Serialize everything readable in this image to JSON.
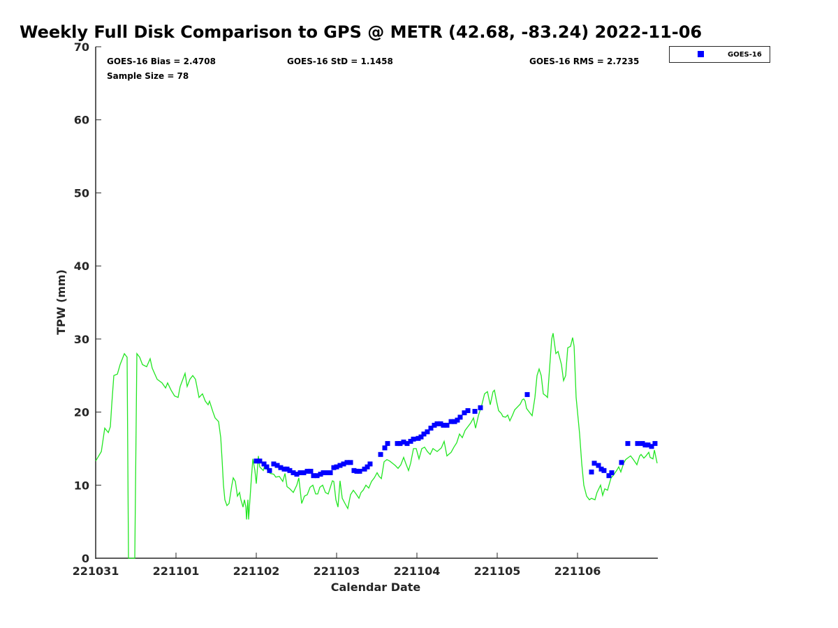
{
  "chart_data": {
    "type": "scatter",
    "title": "Weekly Full Disk Comparison to GPS @ METR (42.68, -83.24) 2022-11-06",
    "xlabel": "Calendar Date",
    "ylabel": "TPW (mm)",
    "x_units": "days since 221031",
    "xlim": [
      0,
      7
    ],
    "ylim": [
      0,
      70
    ],
    "xticks": [
      0,
      1,
      2,
      3,
      4,
      5,
      6
    ],
    "xtick_labels": [
      "221031",
      "221101",
      "221102",
      "221103",
      "221104",
      "221105",
      "221106"
    ],
    "yticks": [
      0,
      10,
      20,
      30,
      40,
      50,
      60,
      70
    ],
    "ytick_labels": [
      "0",
      "10",
      "20",
      "30",
      "40",
      "50",
      "60",
      "70"
    ],
    "grid": false,
    "legend_position": "top-right",
    "stats": {
      "bias": "GOES-16 Bias = 2.4708",
      "std": "GOES-16 StD = 1.1458",
      "rms": "GOES-16 RMS = 2.7235",
      "sample": "Sample Size = 78"
    },
    "colors": {
      "goes": "#0000ff",
      "gps": "#22e622"
    },
    "series": [
      {
        "name": "GOES-16",
        "type": "scatter",
        "legend": "GOES-16",
        "points": [
          [
            2.0,
            13.3
          ],
          [
            2.043,
            13.3
          ],
          [
            2.096,
            12.9
          ],
          [
            2.13,
            12.5
          ],
          [
            2.165,
            12.0
          ],
          [
            2.217,
            12.9
          ],
          [
            2.261,
            12.7
          ],
          [
            2.304,
            12.4
          ],
          [
            2.348,
            12.2
          ],
          [
            2.383,
            12.2
          ],
          [
            2.417,
            12.0
          ],
          [
            2.461,
            11.7
          ],
          [
            2.504,
            11.5
          ],
          [
            2.548,
            11.7
          ],
          [
            2.591,
            11.7
          ],
          [
            2.635,
            11.9
          ],
          [
            2.678,
            11.9
          ],
          [
            2.713,
            11.3
          ],
          [
            2.757,
            11.3
          ],
          [
            2.8,
            11.5
          ],
          [
            2.835,
            11.7
          ],
          [
            2.878,
            11.7
          ],
          [
            2.922,
            11.7
          ],
          [
            2.965,
            12.4
          ],
          [
            3.0,
            12.5
          ],
          [
            3.043,
            12.7
          ],
          [
            3.087,
            12.9
          ],
          [
            3.13,
            13.1
          ],
          [
            3.174,
            13.1
          ],
          [
            3.217,
            12.0
          ],
          [
            3.252,
            11.9
          ],
          [
            3.287,
            11.9
          ],
          [
            3.348,
            12.2
          ],
          [
            3.383,
            12.5
          ],
          [
            3.417,
            12.9
          ],
          [
            3.548,
            14.2
          ],
          [
            3.6,
            15.1
          ],
          [
            3.635,
            15.7
          ],
          [
            3.757,
            15.7
          ],
          [
            3.791,
            15.7
          ],
          [
            3.835,
            15.9
          ],
          [
            3.878,
            15.7
          ],
          [
            3.922,
            16.0
          ],
          [
            3.957,
            16.3
          ],
          [
            4.017,
            16.4
          ],
          [
            4.052,
            16.6
          ],
          [
            4.087,
            17.0
          ],
          [
            4.13,
            17.3
          ],
          [
            4.174,
            17.8
          ],
          [
            4.217,
            18.2
          ],
          [
            4.252,
            18.4
          ],
          [
            4.296,
            18.4
          ],
          [
            4.33,
            18.2
          ],
          [
            4.374,
            18.2
          ],
          [
            4.426,
            18.7
          ],
          [
            4.47,
            18.7
          ],
          [
            4.504,
            18.9
          ],
          [
            4.539,
            19.3
          ],
          [
            4.591,
            19.9
          ],
          [
            4.635,
            20.2
          ],
          [
            4.722,
            20.1
          ],
          [
            4.791,
            20.6
          ],
          [
            5.374,
            22.4
          ],
          [
            6.174,
            11.8
          ],
          [
            6.209,
            13.0
          ],
          [
            6.261,
            12.7
          ],
          [
            6.296,
            12.2
          ],
          [
            6.33,
            12.0
          ],
          [
            6.391,
            11.3
          ],
          [
            6.426,
            11.7
          ],
          [
            6.548,
            13.1
          ],
          [
            6.626,
            15.7
          ],
          [
            6.748,
            15.7
          ],
          [
            6.809,
            15.7
          ],
          [
            6.843,
            15.5
          ],
          [
            6.878,
            15.5
          ],
          [
            6.922,
            15.3
          ],
          [
            6.965,
            15.7
          ]
        ]
      },
      {
        "name": "GPS",
        "type": "line",
        "points": [
          [
            0,
            13.3
          ],
          [
            0.07,
            14.6
          ],
          [
            0.113,
            17.8
          ],
          [
            0.157,
            17.2
          ],
          [
            0.183,
            18
          ],
          [
            0.2,
            21
          ],
          [
            0.226,
            25
          ],
          [
            0.27,
            25.2
          ],
          [
            0.304,
            26.5
          ],
          [
            0.357,
            28
          ],
          [
            0.391,
            27.5
          ],
          [
            0.409,
            0
          ],
          [
            0.487,
            0
          ],
          [
            0.513,
            28
          ],
          [
            0.548,
            27.5
          ],
          [
            0.583,
            26.5
          ],
          [
            0.635,
            26.2
          ],
          [
            0.678,
            27.3
          ],
          [
            0.704,
            26
          ],
          [
            0.765,
            24.5
          ],
          [
            0.826,
            24
          ],
          [
            0.87,
            23.3
          ],
          [
            0.896,
            24
          ],
          [
            0.939,
            23
          ],
          [
            0.983,
            22.2
          ],
          [
            1.026,
            22
          ],
          [
            1.052,
            23.5
          ],
          [
            1.113,
            25.3
          ],
          [
            1.139,
            23.5
          ],
          [
            1.174,
            24.5
          ],
          [
            1.209,
            25
          ],
          [
            1.243,
            24.5
          ],
          [
            1.287,
            22
          ],
          [
            1.33,
            22.5
          ],
          [
            1.365,
            21.5
          ],
          [
            1.4,
            21
          ],
          [
            1.417,
            21.5
          ],
          [
            1.461,
            20
          ],
          [
            1.487,
            19.2
          ],
          [
            1.53,
            18.7
          ],
          [
            1.557,
            16.5
          ],
          [
            1.574,
            13.5
          ],
          [
            1.591,
            10
          ],
          [
            1.609,
            8
          ],
          [
            1.635,
            7.2
          ],
          [
            1.661,
            7.5
          ],
          [
            1.696,
            10
          ],
          [
            1.713,
            11
          ],
          [
            1.739,
            10.5
          ],
          [
            1.765,
            8.5
          ],
          [
            1.791,
            9
          ],
          [
            1.809,
            8
          ],
          [
            1.835,
            7
          ],
          [
            1.852,
            8
          ],
          [
            1.87,
            7
          ],
          [
            1.878,
            5.3
          ],
          [
            1.896,
            8
          ],
          [
            1.904,
            5.3
          ],
          [
            1.939,
            11
          ],
          [
            1.957,
            13.6
          ],
          [
            1.983,
            12
          ],
          [
            2.0,
            10.2
          ],
          [
            2.026,
            14
          ],
          [
            2.043,
            12.5
          ],
          [
            2.087,
            12
          ],
          [
            2.113,
            13
          ],
          [
            2.139,
            12
          ],
          [
            2.174,
            11.6
          ],
          [
            2.217,
            11.5
          ],
          [
            2.243,
            11.1
          ],
          [
            2.287,
            11.2
          ],
          [
            2.33,
            10.5
          ],
          [
            2.357,
            11.6
          ],
          [
            2.383,
            9.8
          ],
          [
            2.417,
            9.5
          ],
          [
            2.461,
            9
          ],
          [
            2.504,
            10
          ],
          [
            2.53,
            11
          ],
          [
            2.565,
            7.5
          ],
          [
            2.6,
            8.5
          ],
          [
            2.635,
            8.7
          ],
          [
            2.67,
            9.7
          ],
          [
            2.704,
            10
          ],
          [
            2.739,
            8.8
          ],
          [
            2.765,
            8.8
          ],
          [
            2.791,
            9.7
          ],
          [
            2.826,
            10
          ],
          [
            2.861,
            9
          ],
          [
            2.896,
            8.8
          ],
          [
            2.93,
            10
          ],
          [
            2.948,
            10.6
          ],
          [
            2.965,
            10.5
          ],
          [
            2.991,
            8
          ],
          [
            3.017,
            7
          ],
          [
            3.043,
            10.6
          ],
          [
            3.07,
            8.2
          ],
          [
            3.104,
            7.5
          ],
          [
            3.139,
            6.8
          ],
          [
            3.174,
            8.7
          ],
          [
            3.209,
            9.3
          ],
          [
            3.243,
            8.8
          ],
          [
            3.278,
            8.2
          ],
          [
            3.304,
            9
          ],
          [
            3.33,
            9.3
          ],
          [
            3.365,
            10
          ],
          [
            3.4,
            9.6
          ],
          [
            3.435,
            10.5
          ],
          [
            3.47,
            11
          ],
          [
            3.504,
            11.7
          ],
          [
            3.53,
            11.2
          ],
          [
            3.557,
            10.9
          ],
          [
            3.591,
            13.2
          ],
          [
            3.626,
            13.5
          ],
          [
            3.661,
            13.3
          ],
          [
            3.696,
            13
          ],
          [
            3.73,
            12.7
          ],
          [
            3.765,
            12.3
          ],
          [
            3.8,
            12.8
          ],
          [
            3.835,
            13.8
          ],
          [
            3.861,
            13
          ],
          [
            3.896,
            12
          ],
          [
            3.922,
            13
          ],
          [
            3.957,
            15
          ],
          [
            3.991,
            15
          ],
          [
            4.026,
            13.6
          ],
          [
            4.061,
            15
          ],
          [
            4.096,
            15.2
          ],
          [
            4.13,
            14.6
          ],
          [
            4.165,
            14.2
          ],
          [
            4.2,
            15
          ],
          [
            4.252,
            14.6
          ],
          [
            4.304,
            15.1
          ],
          [
            4.339,
            16
          ],
          [
            4.374,
            14
          ],
          [
            4.426,
            14.5
          ],
          [
            4.461,
            15.2
          ],
          [
            4.496,
            15.8
          ],
          [
            4.53,
            17
          ],
          [
            4.565,
            16.5
          ],
          [
            4.6,
            17.5
          ],
          [
            4.635,
            18
          ],
          [
            4.67,
            18.5
          ],
          [
            4.704,
            19.2
          ],
          [
            4.73,
            17.8
          ],
          [
            4.765,
            19.5
          ],
          [
            4.809,
            21
          ],
          [
            4.843,
            22.5
          ],
          [
            4.878,
            22.8
          ],
          [
            4.913,
            21
          ],
          [
            4.948,
            22.8
          ],
          [
            4.965,
            23
          ],
          [
            4.991,
            21.5
          ],
          [
            5.017,
            20.2
          ],
          [
            5.052,
            19.8
          ],
          [
            5.07,
            19.4
          ],
          [
            5.104,
            19.3
          ],
          [
            5.13,
            19.6
          ],
          [
            5.157,
            18.8
          ],
          [
            5.191,
            19.6
          ],
          [
            5.217,
            20.3
          ],
          [
            5.261,
            20.8
          ],
          [
            5.287,
            21.1
          ],
          [
            5.313,
            21.7
          ],
          [
            5.33,
            21.8
          ],
          [
            5.348,
            21.5
          ],
          [
            5.365,
            20.5
          ],
          [
            5.4,
            20
          ],
          [
            5.435,
            19.5
          ],
          [
            5.47,
            22
          ],
          [
            5.496,
            25
          ],
          [
            5.522,
            25.9
          ],
          [
            5.548,
            25
          ],
          [
            5.574,
            22.5
          ],
          [
            5.609,
            22.2
          ],
          [
            5.626,
            22
          ],
          [
            5.652,
            26
          ],
          [
            5.678,
            30
          ],
          [
            5.696,
            30.8
          ],
          [
            5.73,
            28
          ],
          [
            5.757,
            28.3
          ],
          [
            5.8,
            26.5
          ],
          [
            5.826,
            24.3
          ],
          [
            5.852,
            25
          ],
          [
            5.878,
            28.8
          ],
          [
            5.913,
            29
          ],
          [
            5.939,
            30.2
          ],
          [
            5.957,
            29
          ],
          [
            5.983,
            22
          ],
          [
            6.026,
            17
          ],
          [
            6.052,
            13
          ],
          [
            6.078,
            10
          ],
          [
            6.113,
            8.5
          ],
          [
            6.148,
            8
          ],
          [
            6.174,
            8.2
          ],
          [
            6.217,
            8
          ],
          [
            6.243,
            9
          ],
          [
            6.287,
            10
          ],
          [
            6.313,
            8.6
          ],
          [
            6.339,
            9.5
          ],
          [
            6.374,
            9.3
          ],
          [
            6.391,
            10
          ],
          [
            6.417,
            11
          ],
          [
            6.443,
            11.3
          ],
          [
            6.487,
            12
          ],
          [
            6.513,
            12.5
          ],
          [
            6.539,
            11.8
          ],
          [
            6.574,
            13
          ],
          [
            6.6,
            13.5
          ],
          [
            6.635,
            13.8
          ],
          [
            6.661,
            14
          ],
          [
            6.696,
            13.5
          ],
          [
            6.739,
            12.8
          ],
          [
            6.774,
            14
          ],
          [
            6.791,
            14.2
          ],
          [
            6.826,
            13.7
          ],
          [
            6.852,
            14
          ],
          [
            6.887,
            14.5
          ],
          [
            6.904,
            13.8
          ],
          [
            6.939,
            13.6
          ],
          [
            6.957,
            14.8
          ],
          [
            6.991,
            13
          ]
        ]
      }
    ]
  }
}
